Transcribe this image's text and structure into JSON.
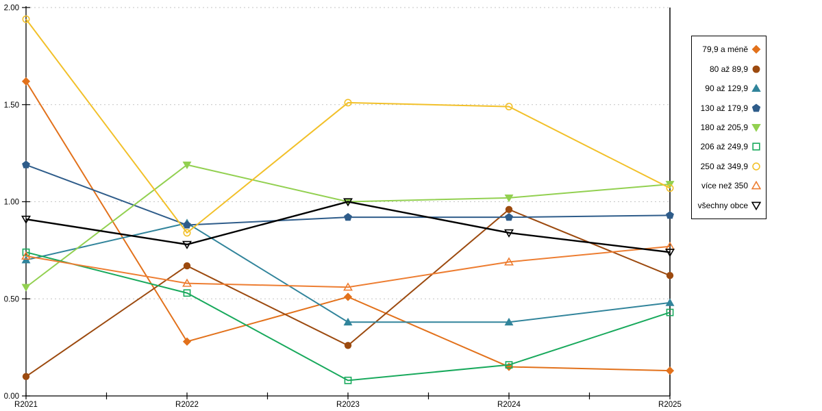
{
  "chart_data": {
    "type": "line",
    "title": "",
    "xlabel": "",
    "ylabel": "",
    "x_categories": [
      "R2021",
      "R2022",
      "R2023",
      "R2024",
      "R2025"
    ],
    "ylim": [
      0,
      2.0
    ],
    "ytick_values": [
      0,
      0.5,
      1.0,
      1.5,
      2.0
    ],
    "ytick_labels": [
      "0.00",
      "0.50",
      "1.00",
      "1.50",
      "2.00"
    ],
    "grid": {
      "horizontal": true,
      "style": "dotted",
      "color": "#c3c3c3"
    },
    "legend_position": "right-outside",
    "series": [
      {
        "name": "79,9 a méně",
        "color": "#E2711B",
        "marker": "diamond",
        "filled": true,
        "values": [
          1.62,
          0.28,
          0.51,
          0.15,
          0.13
        ]
      },
      {
        "name": "80 až 89,9",
        "color": "#9C4A0F",
        "marker": "circle",
        "filled": true,
        "values": [
          0.1,
          0.67,
          0.26,
          0.96,
          0.62
        ]
      },
      {
        "name": "90 až 129,9",
        "color": "#31849B",
        "marker": "triangle-up",
        "filled": true,
        "values": [
          0.7,
          0.89,
          0.38,
          0.38,
          0.48
        ]
      },
      {
        "name": "130 až 179,9",
        "color": "#2E5C8A",
        "marker": "pentagon",
        "filled": true,
        "values": [
          1.19,
          0.88,
          0.92,
          0.92,
          0.93
        ]
      },
      {
        "name": "180 až 205,9",
        "color": "#92D050",
        "marker": "triangle-down",
        "filled": true,
        "values": [
          0.56,
          1.19,
          1.0,
          1.02,
          1.09
        ]
      },
      {
        "name": "206 až 249,9",
        "color": "#18A95C",
        "marker": "square",
        "filled": false,
        "values": [
          0.74,
          0.53,
          0.08,
          0.16,
          0.43
        ]
      },
      {
        "name": "250 až 349,9",
        "color": "#F2C029",
        "marker": "circle",
        "filled": false,
        "values": [
          1.94,
          0.84,
          1.51,
          1.49,
          1.07
        ]
      },
      {
        "name": "více než 350",
        "color": "#ED7D31",
        "marker": "triangle-up",
        "filled": false,
        "values": [
          0.72,
          0.58,
          0.56,
          0.69,
          0.77
        ]
      },
      {
        "name": "všechny obce",
        "color": "#000000",
        "marker": "triangle-down",
        "filled": false,
        "values": [
          0.91,
          0.78,
          1.0,
          0.84,
          0.74
        ]
      }
    ]
  }
}
